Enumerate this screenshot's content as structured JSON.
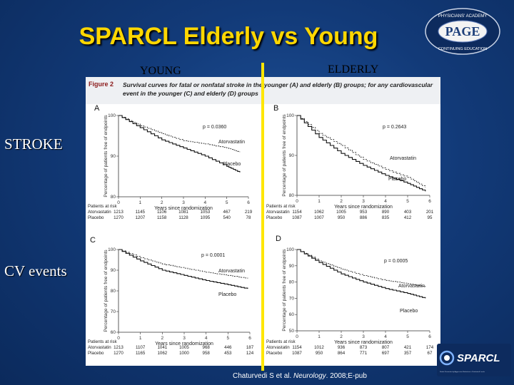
{
  "slide": {
    "title": "SPARCL Elderly vs Young",
    "col_young": "YOUNG",
    "col_elderly": "ELDERLY",
    "row_stroke": "STROKE",
    "row_cv": "CV events",
    "citation_prefix": "Chaturvedi S et al. ",
    "citation_journal": "Neurology",
    "citation_suffix": ". 2008;E-pub"
  },
  "figure": {
    "number": "Figure 2",
    "caption": "Survival curves for fatal or nonfatal stroke in the younger (A) and elderly (B) groups; for any cardiovascular event in the younger (C) and elderly (D) groups"
  },
  "logos": {
    "page_top": "PHYSICIANS' ACADEMY",
    "page_main": "PAGE",
    "page_bottom": "CONTINUING EDUCATION",
    "sparcl": "SPARCL",
    "sparcl_sub": "Stroke Prevention by Aggressive Reduction in Cholesterol Levels"
  },
  "colors": {
    "title": "#ffd700",
    "divider": "#ffe600",
    "background": "#123a78"
  },
  "chart_data": [
    {
      "type": "line",
      "panel": "A",
      "ylabel": "Percentage of patients free of endpoints",
      "xlabel": "Years since randomization",
      "xlim": [
        0,
        6
      ],
      "ylim": [
        80,
        100
      ],
      "yticks": [
        80,
        90,
        100
      ],
      "xticks": [
        0,
        1,
        2,
        3,
        4,
        5,
        6
      ],
      "p_value": "p = 0.0360",
      "series": [
        {
          "name": "Atorvastatin",
          "style": "dashed",
          "x": [
            0,
            1,
            2,
            3,
            4,
            5,
            5.6
          ],
          "y": [
            100,
            97.5,
            95.5,
            93.8,
            93.0,
            92.0,
            91.0
          ]
        },
        {
          "name": "Placebo",
          "style": "solid",
          "x": [
            0,
            1,
            2,
            3,
            4,
            5,
            5.6
          ],
          "y": [
            100,
            97.0,
            94.0,
            92.0,
            90.0,
            87.5,
            86.0
          ]
        }
      ],
      "risk_header": "Patients at risk",
      "risk": [
        {
          "name": "Atorvastatin",
          "values": [
            "1213",
            "1145",
            "1106",
            "1081",
            "1053",
            "467",
            "219"
          ]
        },
        {
          "name": "Placebo",
          "values": [
            "1270",
            "1207",
            "1158",
            "1128",
            "1095",
            "540",
            "78"
          ]
        }
      ]
    },
    {
      "type": "line",
      "panel": "B",
      "ylabel": "Percentage of patients free of endpoints",
      "xlabel": "Years since randomization",
      "xlim": [
        0,
        6
      ],
      "ylim": [
        80,
        100
      ],
      "yticks": [
        80,
        90,
        100
      ],
      "xticks": [
        0,
        1,
        2,
        3,
        4,
        5,
        6
      ],
      "p_value": "p = 0.2643",
      "series": [
        {
          "name": "Atorvastatin",
          "style": "dashed",
          "x": [
            0,
            1,
            2,
            3,
            4,
            5,
            5.8
          ],
          "y": [
            100,
            95.5,
            92.5,
            89.0,
            86.5,
            84.5,
            82.0
          ]
        },
        {
          "name": "Placebo",
          "style": "solid",
          "x": [
            0,
            1,
            2,
            3,
            4,
            5,
            5.8
          ],
          "y": [
            100,
            94.5,
            90.5,
            87.5,
            85.0,
            83.0,
            81.0
          ]
        }
      ],
      "risk_header": "Patients at risk",
      "risk": [
        {
          "name": "Atorvastatin",
          "values": [
            "1154",
            "1062",
            "1005",
            "953",
            "890",
            "403",
            "201"
          ]
        },
        {
          "name": "Placebo",
          "values": [
            "1087",
            "1007",
            "950",
            "886",
            "835",
            "412",
            "95"
          ]
        }
      ]
    },
    {
      "type": "line",
      "panel": "C",
      "ylabel": "Percentage of patients free of endpoints",
      "xlabel": "Years since randomization",
      "xlim": [
        0,
        6
      ],
      "ylim": [
        60,
        100
      ],
      "yticks": [
        60,
        70,
        80,
        90,
        100
      ],
      "xticks": [
        0,
        1,
        2,
        3,
        4,
        5,
        6
      ],
      "p_value": "p = 0.0001",
      "series": [
        {
          "name": "Atorvastatin",
          "style": "dashed",
          "x": [
            0,
            1,
            2,
            3,
            4,
            5,
            5.9
          ],
          "y": [
            100,
            96.0,
            93.0,
            91.0,
            89.0,
            87.5,
            86.0
          ]
        },
        {
          "name": "Placebo",
          "style": "solid",
          "x": [
            0,
            1,
            2,
            3,
            4,
            5,
            5.9
          ],
          "y": [
            100,
            94.5,
            90.0,
            87.5,
            85.0,
            83.0,
            81.0
          ]
        }
      ],
      "risk_header": "Patients at risk",
      "risk": [
        {
          "name": "Atorvastatin",
          "values": [
            "1213",
            "1107",
            "1041",
            "1005",
            "968",
            "446",
            "187"
          ]
        },
        {
          "name": "Placebo",
          "values": [
            "1270",
            "1165",
            "1062",
            "1000",
            "958",
            "453",
            "124"
          ]
        }
      ]
    },
    {
      "type": "line",
      "panel": "D",
      "ylabel": "Percentage of patients free of endpoints",
      "xlabel": "Years since randomization",
      "xlim": [
        0,
        6
      ],
      "ylim": [
        50,
        100
      ],
      "yticks": [
        50,
        60,
        70,
        80,
        90,
        100
      ],
      "xticks": [
        0,
        1,
        2,
        3,
        4,
        5,
        6
      ],
      "p_value": "p = 0.0005",
      "series": [
        {
          "name": "Atorvastatin",
          "style": "dashed",
          "x": [
            0,
            1,
            2,
            3,
            4,
            5,
            5.8
          ],
          "y": [
            100,
            93.0,
            88.0,
            84.0,
            81.0,
            79.0,
            77.0
          ]
        },
        {
          "name": "Placebo",
          "style": "solid",
          "x": [
            0,
            1,
            2,
            3,
            4,
            5,
            5.8
          ],
          "y": [
            100,
            92.0,
            85.0,
            80.0,
            76.0,
            73.0,
            70.0
          ]
        }
      ],
      "risk_header": "Patients at risk",
      "risk": [
        {
          "name": "Atorvastatin",
          "values": [
            "1154",
            "1012",
            "936",
            "873",
            "807",
            "421",
            "174"
          ]
        },
        {
          "name": "Placebo",
          "values": [
            "1087",
            "950",
            "864",
            "771",
            "697",
            "357",
            "67"
          ]
        }
      ]
    }
  ]
}
